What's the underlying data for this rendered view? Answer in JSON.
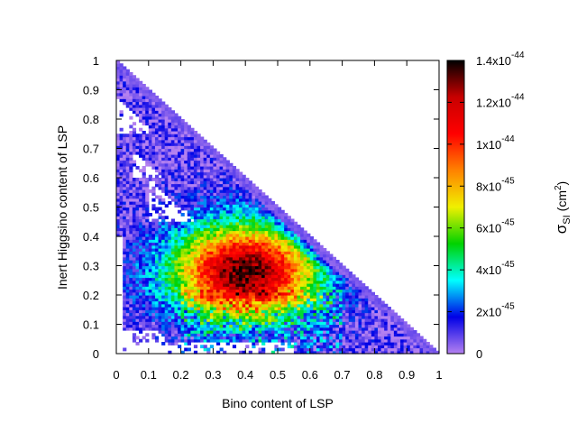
{
  "chart_data": {
    "type": "heatmap",
    "xlabel": "Bino content of LSP",
    "ylabel": "Inert Higgsino content of LSP",
    "colorbar_label_base": "σ",
    "colorbar_label_sub": "SI",
    "colorbar_label_unit": "(cm",
    "colorbar_label_exp": "2",
    "colorbar_label_close": ")",
    "xlim": [
      0,
      1
    ],
    "ylim": [
      0,
      1
    ],
    "x_ticks": [
      "0",
      "0.1",
      "0.2",
      "0.3",
      "0.4",
      "0.5",
      "0.6",
      "0.7",
      "0.8",
      "0.9",
      "1"
    ],
    "y_ticks": [
      "0",
      "0.1",
      "0.2",
      "0.3",
      "0.4",
      "0.5",
      "0.6",
      "0.7",
      "0.8",
      "0.9",
      "1"
    ],
    "colorbar": {
      "min": 0,
      "max": 1.4e-44,
      "stops": [
        "#b481f0",
        "#0000e6",
        "#00ffff",
        "#00d200",
        "#f0f000",
        "#ff8200",
        "#ff0000",
        "#c80000",
        "#000000"
      ],
      "ticks": [
        {
          "value": 0,
          "base": "0",
          "exp": ""
        },
        {
          "value": 2e-45,
          "base": "2x10",
          "exp": "-45"
        },
        {
          "value": 4e-45,
          "base": "4x10",
          "exp": "-45"
        },
        {
          "value": 6e-45,
          "base": "6x10",
          "exp": "-45"
        },
        {
          "value": 8e-45,
          "base": "8x10",
          "exp": "-45"
        },
        {
          "value": 1e-44,
          "base": "1x10",
          "exp": "-44"
        },
        {
          "value": 1.2e-44,
          "base": "1.2x10",
          "exp": "-44"
        },
        {
          "value": 1.4e-44,
          "base": "1.4x10",
          "exp": "-44"
        }
      ]
    },
    "bin_size": 0.01,
    "region": "bino + higgsino <= 1",
    "peak": {
      "x": 0.4,
      "y": 0.28,
      "sigma_SI": 1.4e-44
    },
    "description_values": {
      "edge_value": 0,
      "peak_value": 1.4e-44
    }
  }
}
